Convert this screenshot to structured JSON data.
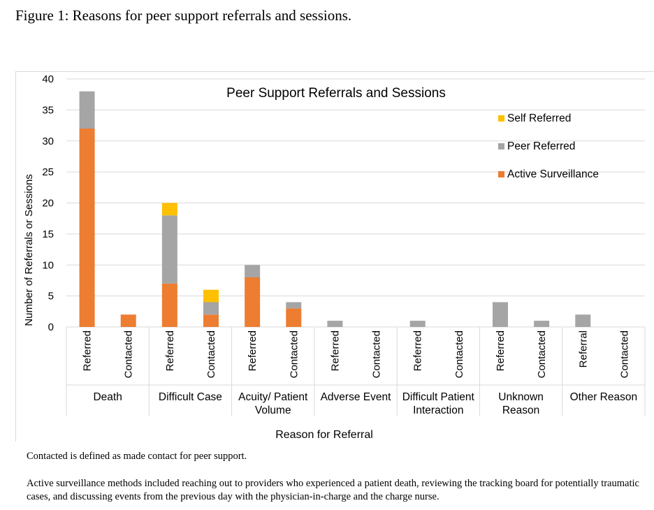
{
  "figure_caption": "Figure 1: Reasons for peer support referrals and sessions.",
  "notes": {
    "contacted_definition": "Contacted is defined as made contact for peer support.",
    "active_surveillance": "Active surveillance methods included reaching out to providers who experienced a patient death, reviewing the tracking board for potentially traumatic cases, and discussing events from the previous day with the physician-in-charge and the charge nurse."
  },
  "chart_data": {
    "type": "bar",
    "stacked": true,
    "title": "Peer Support Referrals and Sessions",
    "xlabel": "Reason for Referral",
    "ylabel": "Number of Referrals or Sessions",
    "ylim": [
      0,
      40
    ],
    "yticks": [
      0,
      5,
      10,
      15,
      20,
      25,
      30,
      35,
      40
    ],
    "grid": true,
    "legend_position": "right",
    "groups": [
      {
        "label": [
          "Death"
        ],
        "bars": [
          "Referred",
          "Contacted"
        ]
      },
      {
        "label": [
          "Difficult Case"
        ],
        "bars": [
          "Referred",
          "Contacted"
        ]
      },
      {
        "label": [
          "Acuity/ Patient",
          "Volume"
        ],
        "bars": [
          "Referred",
          "Contacted"
        ]
      },
      {
        "label": [
          "Adverse Event"
        ],
        "bars": [
          "Referred",
          "Contacted"
        ]
      },
      {
        "label": [
          "Difficult Patient",
          "Interaction"
        ],
        "bars": [
          "Referred",
          "Contacted"
        ]
      },
      {
        "label": [
          "Unknown",
          "Reason"
        ],
        "bars": [
          "Referred",
          "Contacted"
        ]
      },
      {
        "label": [
          "Other Reason"
        ],
        "bars": [
          "Referral",
          "Contacted"
        ]
      }
    ],
    "series": [
      {
        "name": "Active Surveillance",
        "color": "#ed7d31",
        "values": [
          32,
          2,
          7,
          2,
          8,
          3,
          0,
          0,
          0,
          0,
          0,
          0,
          0,
          0
        ]
      },
      {
        "name": "Peer Referred",
        "color": "#a5a5a5",
        "values": [
          6,
          0,
          11,
          2,
          2,
          1,
          1,
          0,
          1,
          0,
          4,
          1,
          2,
          0
        ]
      },
      {
        "name": "Self Referred",
        "color": "#ffc000",
        "values": [
          0,
          0,
          2,
          2,
          0,
          0,
          0,
          0,
          0,
          0,
          0,
          0,
          0,
          0
        ]
      }
    ],
    "legend_order": [
      "Self Referred",
      "Peer Referred",
      "Active Surveillance"
    ]
  }
}
